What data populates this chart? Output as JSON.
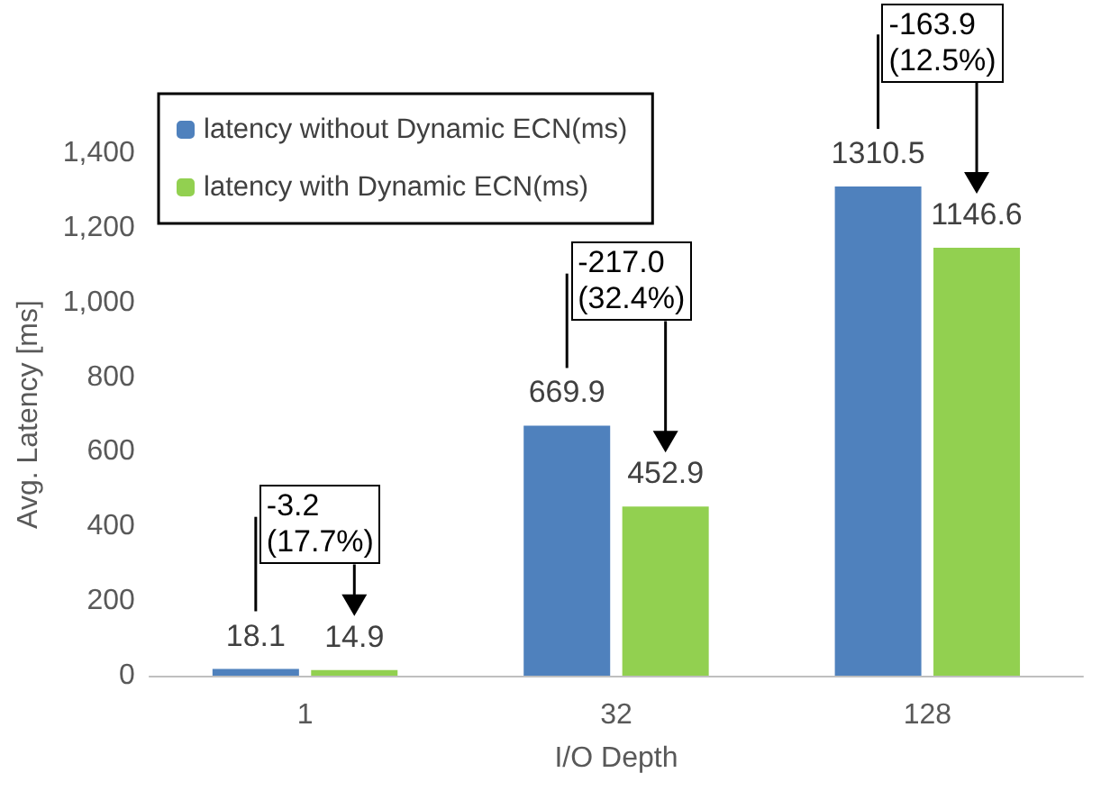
{
  "chart_data": {
    "type": "bar",
    "xlabel": "I/O Depth",
    "ylabel": "Avg. Latency [ms]",
    "categories": [
      "1",
      "32",
      "128"
    ],
    "series": [
      {
        "name": "latency without Dynamic ECN(ms)",
        "color": "#4f81bd",
        "values": [
          18.1,
          669.9,
          1310.5
        ]
      },
      {
        "name": "latency with Dynamic ECN(ms)",
        "color": "#92d050",
        "values": [
          14.9,
          452.9,
          1146.6
        ]
      }
    ],
    "ylim": [
      0,
      1400
    ],
    "yticks": [
      0,
      200,
      400,
      600,
      800,
      {
        "value": 1000,
        "label": "1,000"
      },
      {
        "value": 1200,
        "label": "1,200"
      },
      {
        "value": 1400,
        "label": "1,400"
      }
    ],
    "data_labels": true,
    "grid": false,
    "legend": "top left",
    "annotations": [
      "-3.2\n(17.7%)",
      "-217.0\n(32.4%)",
      "-163.9\n(12.5%)"
    ]
  }
}
